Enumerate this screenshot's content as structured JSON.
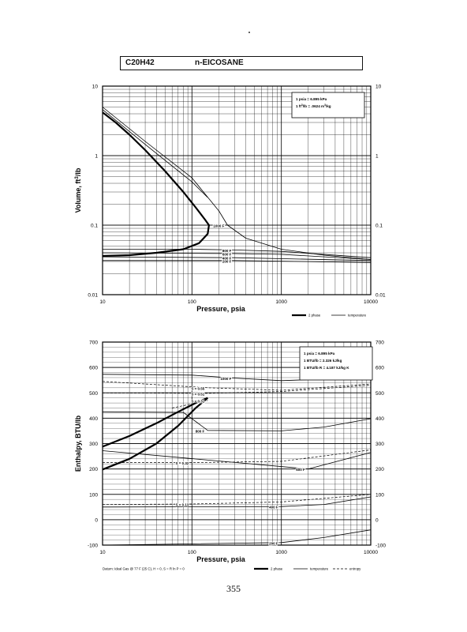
{
  "header": {
    "formula": "C20H42",
    "name": "n-EICOSANE"
  },
  "page_number": "355",
  "chart_data": [
    {
      "type": "line",
      "xscale": "log",
      "yscale": "log",
      "xlabel": "Pressure,  psia",
      "ylabel": "Volume, ft^3/lb",
      "xlim": [
        10,
        10000
      ],
      "ylim": [
        0.01,
        10
      ],
      "x_ticks": [
        "10",
        "100",
        "1000",
        "10000"
      ],
      "y_ticks": [
        "0.01",
        "0.1",
        "1",
        "10"
      ],
      "grid": true,
      "conversions": [
        "1 psia  =  6.895 kPa",
        "1 ft^3/lb  =  .0624 m^3/kg"
      ],
      "legend_items": [
        "2 phase",
        "temperature"
      ],
      "series": [
        {
          "kind": "2phase",
          "points": [
            [
              10,
              4.2
            ],
            [
              14,
              3.0
            ],
            [
              20,
              2.0
            ],
            [
              30,
              1.2
            ],
            [
              50,
              0.6
            ],
            [
              80,
              0.3
            ],
            [
              110,
              0.18
            ],
            [
              140,
              0.12
            ],
            [
              155,
              0.1
            ],
            [
              150,
              0.075
            ],
            [
              120,
              0.055
            ],
            [
              80,
              0.045
            ],
            [
              40,
              0.04
            ],
            [
              20,
              0.037
            ],
            [
              10,
              0.036
            ]
          ]
        },
        {
          "kind": "temperature",
          "label": "1000 F",
          "points": [
            [
              10,
              5.0
            ],
            [
              30,
              1.6
            ],
            [
              100,
              0.48
            ],
            [
              200,
              0.16
            ],
            [
              250,
              0.1
            ],
            [
              400,
              0.065
            ],
            [
              1000,
              0.045
            ],
            [
              3000,
              0.037
            ],
            [
              10000,
              0.032
            ]
          ]
        },
        {
          "kind": "temperature",
          "points": [
            [
              10,
              4.6
            ],
            [
              30,
              1.45
            ],
            [
              100,
              0.42
            ],
            [
              150,
              0.25
            ]
          ]
        },
        {
          "kind": "temperature",
          "label": "800 F",
          "points": [
            [
              10,
              0.045
            ],
            [
              100,
              0.045
            ],
            [
              300,
              0.044
            ],
            [
              1000,
              0.042
            ],
            [
              10000,
              0.034
            ]
          ]
        },
        {
          "kind": "temperature",
          "label": "600 F",
          "points": [
            [
              10,
              0.04
            ],
            [
              300,
              0.039
            ],
            [
              1000,
              0.038
            ],
            [
              10000,
              0.032
            ]
          ]
        },
        {
          "kind": "temperature",
          "label": "400 F",
          "points": [
            [
              10,
              0.035
            ],
            [
              300,
              0.034
            ],
            [
              10000,
              0.031
            ]
          ]
        },
        {
          "kind": "temperature",
          "label": "200 F",
          "points": [
            [
              10,
              0.031
            ],
            [
              300,
              0.031
            ],
            [
              10000,
              0.029
            ]
          ]
        }
      ]
    },
    {
      "type": "line",
      "xscale": "log",
      "xlabel": "Pressure,  psia",
      "ylabel": "Enthalpy, BTU/lb",
      "xlim": [
        10,
        10000
      ],
      "ylim": [
        -100,
        700
      ],
      "x_ticks": [
        "10",
        "100",
        "1000",
        "10000"
      ],
      "y_ticks": [
        "-100",
        "0",
        "100",
        "200",
        "300",
        "400",
        "500",
        "600",
        "700"
      ],
      "grid": true,
      "conversions": [
        "1 psia  =  6.895 kPa",
        "1 BTU/lb  =  2.326 kJ/kg",
        "1 BTU/lb R  =  4.187 kJ/kg K"
      ],
      "legend_items": [
        "2 phase",
        "temperature",
        "entropy"
      ],
      "datum_note": "Datum: Ideal Gas @ 77 F (25 C),  H = 0,  S = R ln P = 0",
      "series": [
        {
          "kind": "2phase",
          "points": [
            [
              10,
              288
            ],
            [
              20,
              330
            ],
            [
              40,
              380
            ],
            [
              70,
              425
            ],
            [
              110,
              460
            ],
            [
              150,
              480
            ]
          ]
        },
        {
          "kind": "2phase",
          "points": [
            [
              10,
              198
            ],
            [
              20,
              240
            ],
            [
              40,
              300
            ],
            [
              70,
              370
            ],
            [
              110,
              440
            ],
            [
              150,
              480
            ]
          ]
        },
        {
          "kind": "temperature",
          "label": "1000 F",
          "points": [
            [
              10,
              573
            ],
            [
              100,
              570
            ],
            [
              300,
              558
            ],
            [
              1000,
              548
            ],
            [
              10000,
              560
            ]
          ]
        },
        {
          "kind": "temperature",
          "label": "800 F",
          "points": [
            [
              10,
              425
            ],
            [
              80,
              423
            ],
            [
              150,
              352
            ],
            [
              1000,
              350
            ],
            [
              3000,
              365
            ],
            [
              10000,
              398
            ]
          ]
        },
        {
          "kind": "temperature",
          "label": "600 F",
          "points": [
            [
              10,
              272
            ],
            [
              2000,
              200
            ],
            [
              10000,
              265
            ]
          ]
        },
        {
          "kind": "temperature",
          "label": "400 F",
          "points": [
            [
              10,
              50
            ],
            [
              1000,
              52
            ],
            [
              3000,
              60
            ],
            [
              10000,
              90
            ]
          ]
        },
        {
          "kind": "temperature",
          "label": "200 F",
          "points": [
            [
              10,
              -100
            ],
            [
              1000,
              -90
            ],
            [
              3000,
              -70
            ],
            [
              10000,
              -40
            ]
          ]
        },
        {
          "kind": "entropy",
          "label": "S = 0.55",
          "points": [
            [
              10,
              545
            ],
            [
              150,
              520
            ],
            [
              1000,
              510
            ],
            [
              10000,
              535
            ]
          ]
        },
        {
          "kind": "entropy",
          "label": "S = 0.51",
          "points": [
            [
              10,
              500
            ],
            [
              150,
              498
            ],
            [
              1000,
              505
            ],
            [
              10000,
              530
            ]
          ]
        },
        {
          "kind": "entropy",
          "label": "S = 0.31",
          "points": [
            [
              60,
              440
            ],
            [
              150,
              470
            ]
          ]
        },
        {
          "kind": "entropy",
          "label": "S = 0.32",
          "points": [
            [
              10,
              225
            ],
            [
              100,
              225
            ],
            [
              1000,
              230
            ],
            [
              10000,
              275
            ]
          ]
        },
        {
          "kind": "entropy",
          "label": "S = 0.13",
          "points": [
            [
              10,
              60
            ],
            [
              100,
              62
            ],
            [
              1000,
              70
            ],
            [
              10000,
              100
            ]
          ]
        }
      ]
    }
  ]
}
